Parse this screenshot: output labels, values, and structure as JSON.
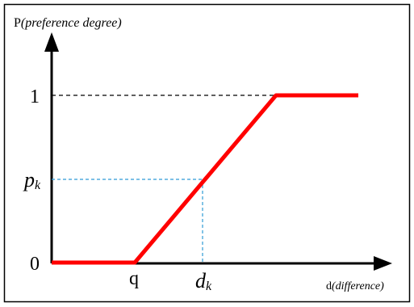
{
  "labels": {
    "y_axis_prefix": "P",
    "y_axis_italic": "(preference degree)",
    "x_axis_prefix": "d",
    "x_axis_italic": "(difference)",
    "level_one": "1",
    "level_pk_base": "p",
    "level_pk_sub": "k",
    "origin": "0",
    "threshold": "q",
    "dk_base": "d",
    "dk_sub": "k"
  },
  "colors": {
    "curve": "#ff0000",
    "helper_one": "#000000",
    "helper_pk": "#2e9bd6",
    "axis": "#000000",
    "frame": "#000000"
  },
  "icons": {
    "y_arrow": "arrow-up-icon",
    "x_arrow": "arrow-right-icon"
  }
}
